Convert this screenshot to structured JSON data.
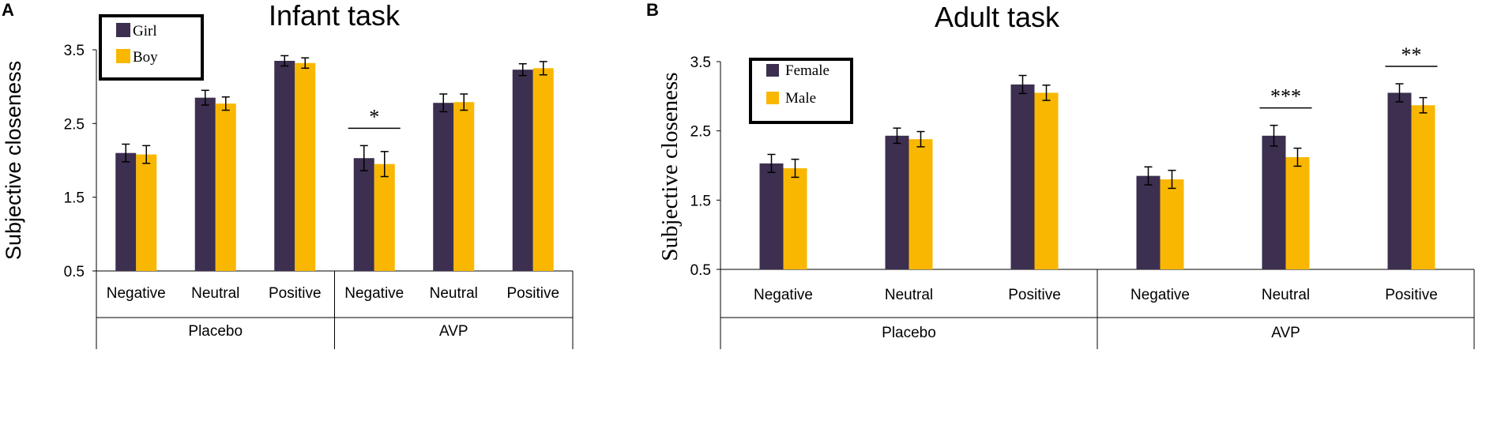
{
  "colors": {
    "series1": "#3c2f50",
    "series2": "#f9b701",
    "axis": "#000000"
  },
  "chart_data": [
    {
      "panel": "A",
      "type": "bar",
      "title": "Infant task",
      "ylabel": "Subjective closeness",
      "xlabel": "",
      "ylim": [
        0.5,
        3.5
      ],
      "yticks": [
        "0.5",
        "1.5",
        "2.5",
        "3.5"
      ],
      "categories": [
        "Negative",
        "Neutral",
        "Positive",
        "Negative",
        "Neutral",
        "Positive"
      ],
      "groups": [
        {
          "label": "Placebo",
          "span": [
            0,
            2
          ]
        },
        {
          "label": "AVP",
          "span": [
            3,
            5
          ]
        }
      ],
      "series": [
        {
          "name": "Girl",
          "values": [
            2.1,
            2.85,
            3.35,
            2.03,
            2.78,
            3.23
          ],
          "errors": [
            0.12,
            0.1,
            0.07,
            0.17,
            0.12,
            0.08
          ]
        },
        {
          "name": "Boy",
          "values": [
            2.08,
            2.77,
            3.32,
            1.95,
            2.79,
            3.25
          ],
          "errors": [
            0.12,
            0.09,
            0.07,
            0.17,
            0.11,
            0.09
          ]
        }
      ],
      "annotations": [
        {
          "text": "*",
          "category": 3
        }
      ],
      "legend": "top-left"
    },
    {
      "panel": "B",
      "type": "bar",
      "title": "Adult task",
      "ylabel": "Subjective closeness",
      "xlabel": "",
      "ylim": [
        0.5,
        3.5
      ],
      "yticks": [
        "0.5",
        "1.5",
        "2.5",
        "3.5"
      ],
      "categories": [
        "Negative",
        "Neutral",
        "Positive",
        "Negative",
        "Neutral",
        "Positive"
      ],
      "groups": [
        {
          "label": "Placebo",
          "span": [
            0,
            2
          ]
        },
        {
          "label": "AVP",
          "span": [
            3,
            5
          ]
        }
      ],
      "series": [
        {
          "name": "Female",
          "values": [
            2.03,
            2.43,
            3.17,
            1.85,
            2.43,
            3.05
          ],
          "errors": [
            0.13,
            0.11,
            0.13,
            0.13,
            0.15,
            0.13
          ]
        },
        {
          "name": "Male",
          "values": [
            1.96,
            2.38,
            3.05,
            1.8,
            2.12,
            2.87
          ],
          "errors": [
            0.13,
            0.11,
            0.11,
            0.13,
            0.13,
            0.11
          ]
        }
      ],
      "annotations": [
        {
          "text": "***",
          "category": 4
        },
        {
          "text": "**",
          "category": 5
        }
      ],
      "legend": "top-left"
    }
  ]
}
